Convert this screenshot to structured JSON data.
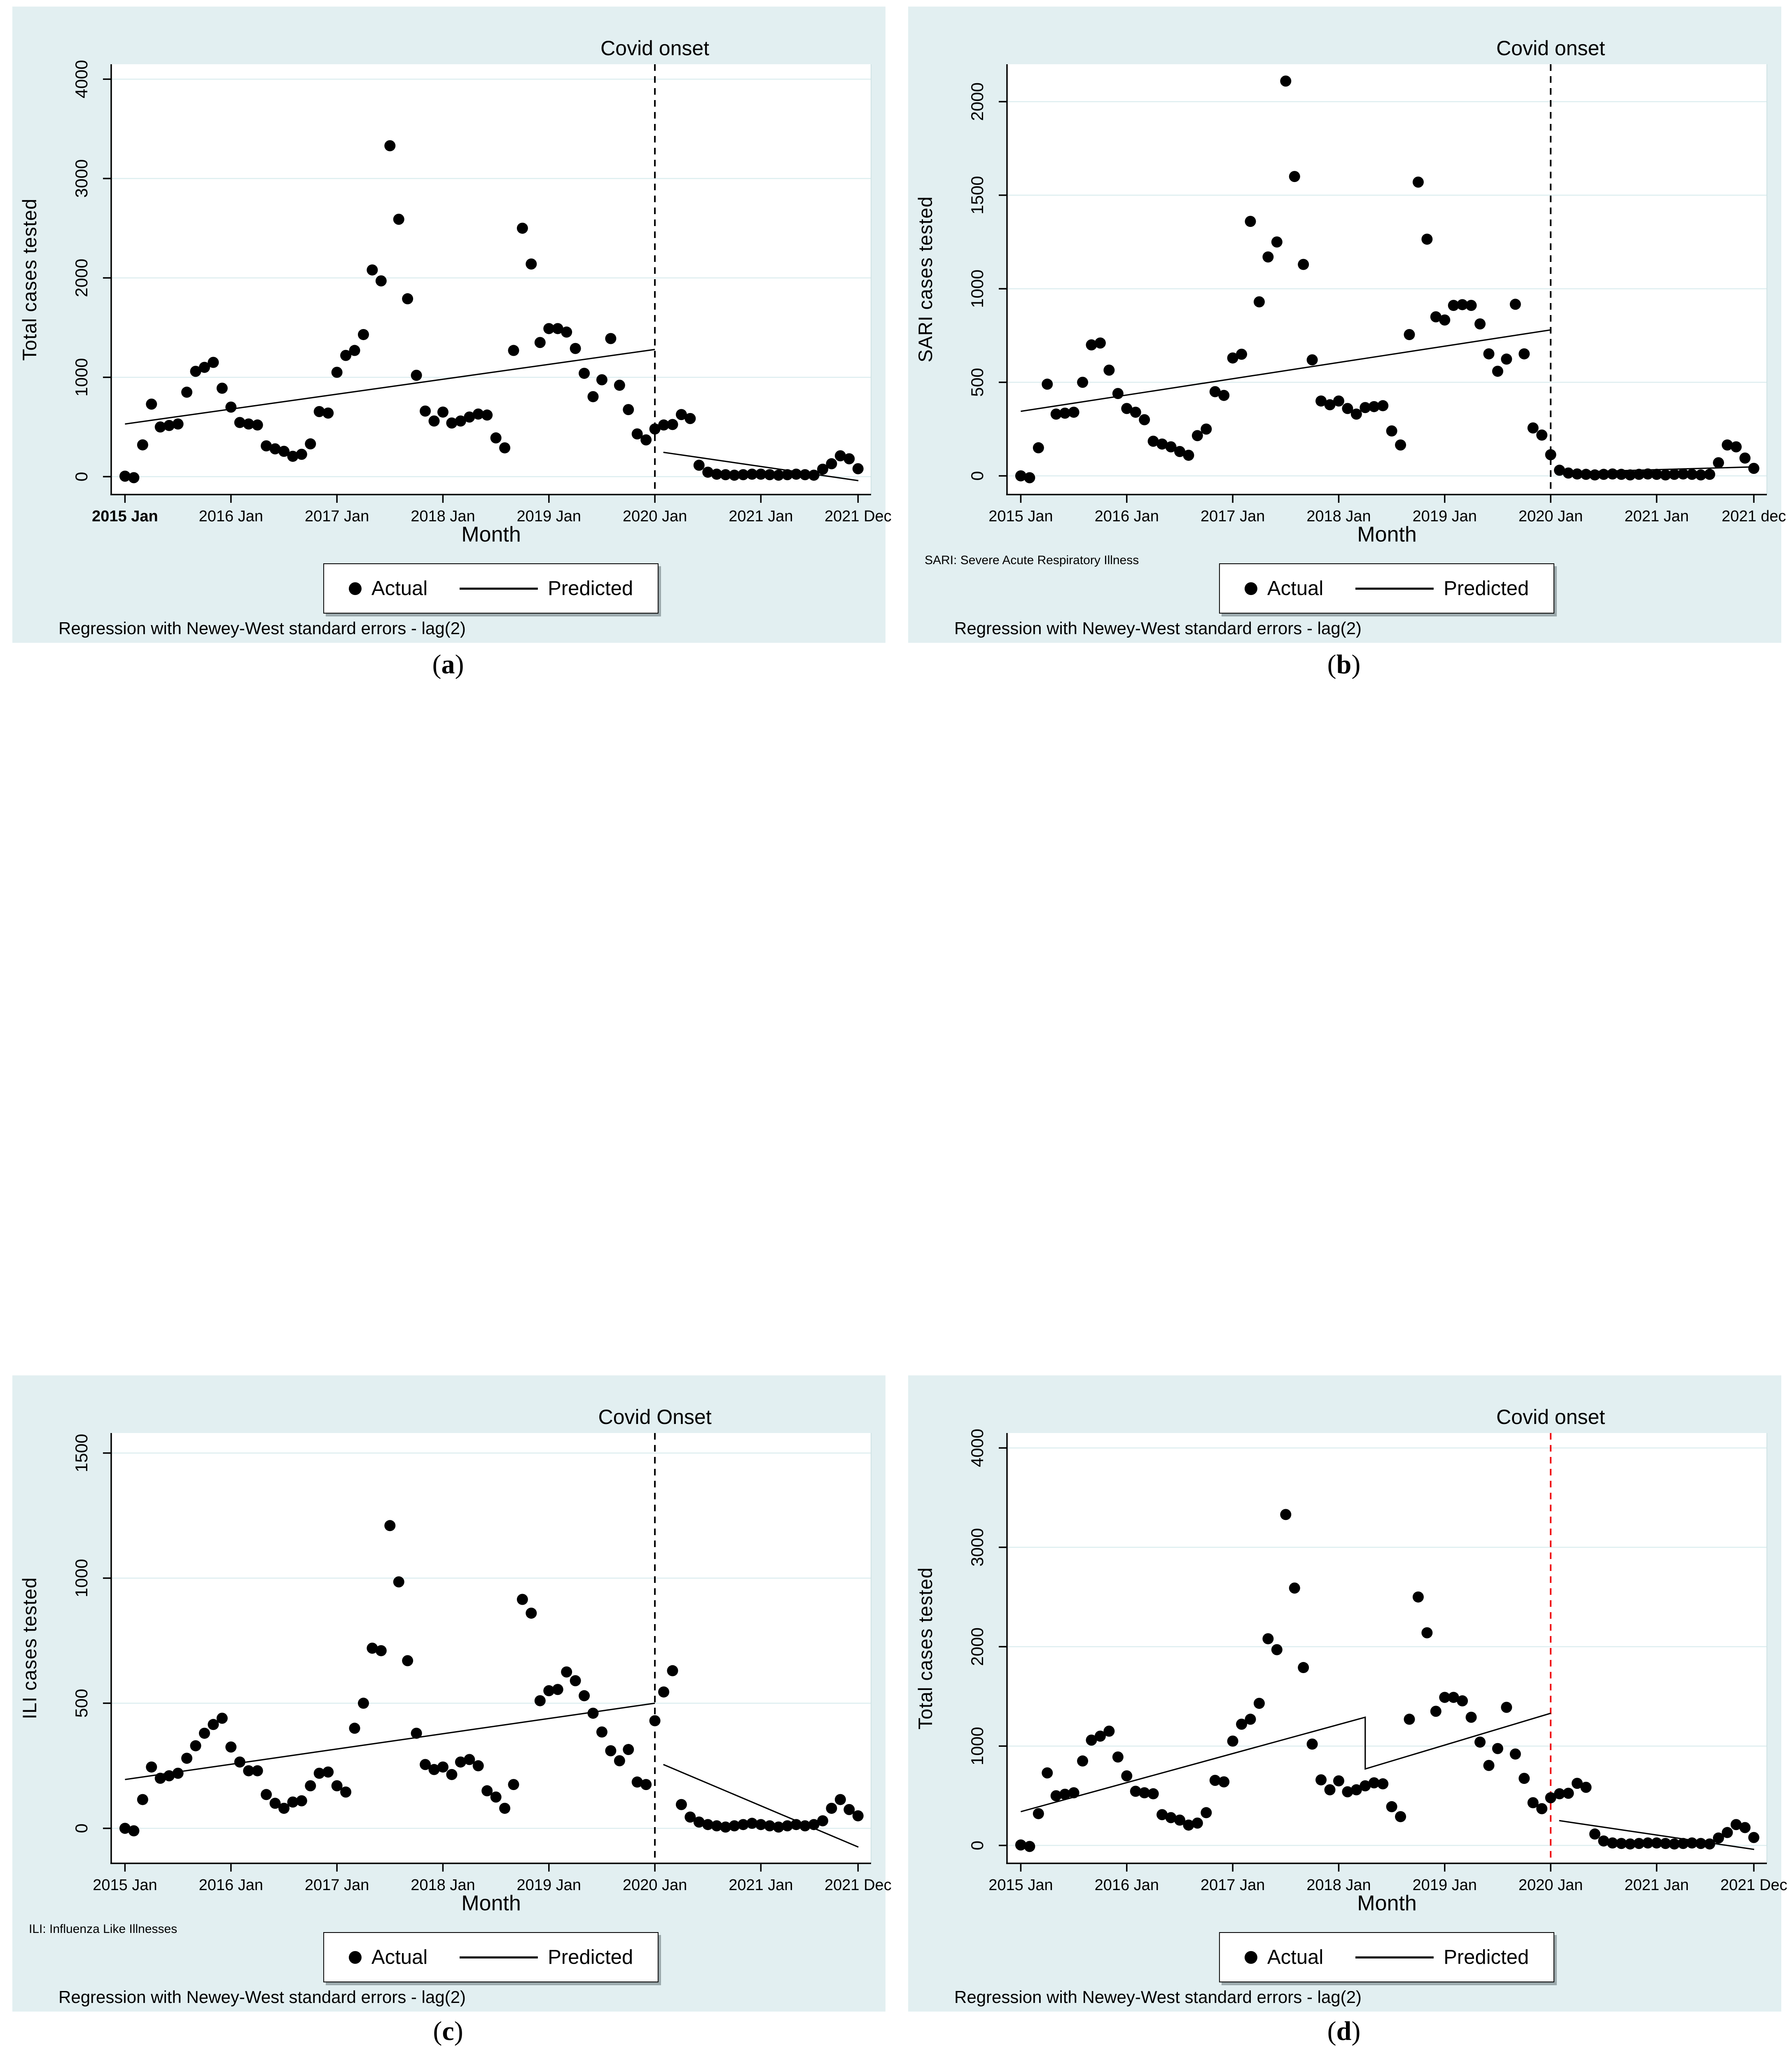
{
  "figure": {
    "background": "#e2eff1",
    "plot_background": "#ffffff",
    "gridline_color": "#dcedef",
    "axis_color": "#000000",
    "point_color": "#000000",
    "panels": [
      {
        "label": {
          "open": "(",
          "letter": "a",
          "close": ")"
        },
        "title": "Covid onset",
        "ylabel": "Total cases tested",
        "xlabel": "Month",
        "note": "",
        "caption": "Regression with Newey-West standard errors - lag(2)",
        "legend": {
          "actual_label": "Actual",
          "predicted_label": "Predicted"
        }
      },
      {
        "label": {
          "open": "(",
          "letter": "b",
          "close": ")"
        },
        "title": "Covid onset",
        "ylabel": "SARI cases tested",
        "xlabel": "Month",
        "note": "SARI: Severe Acute Respiratory Illness",
        "caption": "Regression with Newey-West standard errors - lag(2)",
        "legend": {
          "actual_label": "Actual",
          "predicted_label": "Predicted"
        }
      },
      {
        "label": {
          "open": "(",
          "letter": "c",
          "close": ")"
        },
        "title": "Covid Onset",
        "ylabel": "ILI cases tested",
        "xlabel": "Month",
        "note": "ILI: Influenza Like Illnesses",
        "caption": "Regression with Newey-West standard errors - lag(2)",
        "legend": {
          "actual_label": "Actual",
          "predicted_label": "Predicted"
        }
      },
      {
        "label": {
          "open": "(",
          "letter": "d",
          "close": ")"
        },
        "title": "Covid onset",
        "ylabel": "Total cases tested",
        "xlabel": "Month",
        "note": "",
        "caption": "Regression with Newey-West standard errors - lag(2)",
        "legend": {
          "actual_label": "Actual",
          "predicted_label": "Predicted"
        }
      }
    ]
  },
  "chart_data": [
    {
      "type": "scatter",
      "title": "Covid onset",
      "xlabel": "Month",
      "ylabel": "Total cases tested",
      "legend": [
        "Actual",
        "Predicted"
      ],
      "grid": "horizontal",
      "x_start_year": 2015,
      "xlim": [
        2014.87,
        2022.04
      ],
      "ylim": [
        -180,
        4150
      ],
      "y_ticks": [
        0,
        1000,
        2000,
        3000,
        4000
      ],
      "x_ticks": [
        {
          "x": 2015,
          "label": "2015 Jan",
          "bold": true
        },
        {
          "x": 2016,
          "label": "2016 Jan"
        },
        {
          "x": 2017,
          "label": "2017 Jan"
        },
        {
          "x": 2018,
          "label": "2018 Jan"
        },
        {
          "x": 2019,
          "label": "2019 Jan"
        },
        {
          "x": 2020,
          "label": "2020 Jan"
        },
        {
          "x": 2021,
          "label": "2021 Jan"
        },
        {
          "x": 2021.917,
          "label": "2021 Dec"
        }
      ],
      "covid_vline": {
        "x": 2020.0,
        "color": "#000000"
      },
      "actual_monthly": [
        5,
        -10,
        320,
        730,
        500,
        515,
        530,
        850,
        1060,
        1100,
        1150,
        890,
        700,
        545,
        530,
        520,
        310,
        280,
        255,
        205,
        225,
        330,
        655,
        640,
        1050,
        1220,
        1270,
        1430,
        2080,
        1970,
        3330,
        2590,
        1790,
        1020,
        660,
        560,
        650,
        540,
        560,
        600,
        630,
        620,
        390,
        290,
        1270,
        2500,
        2140,
        1350,
        1490,
        1490,
        1455,
        1290,
        1040,
        805,
        975,
        1390,
        920,
        675,
        430,
        370,
        480,
        520,
        525,
        625,
        585,
        115,
        45,
        25,
        20,
        15,
        20,
        25,
        25,
        20,
        15,
        20,
        25,
        20,
        15,
        75,
        130,
        210,
        180,
        80
      ],
      "predicted_segments": [
        [
          [
            2015.0,
            530
          ],
          [
            2020.0,
            1280
          ]
        ],
        [
          [
            2020.08,
            245
          ],
          [
            2021.92,
            -40
          ]
        ]
      ]
    },
    {
      "type": "scatter",
      "title": "Covid onset",
      "xlabel": "Month",
      "ylabel": "SARI cases tested",
      "legend": [
        "Actual",
        "Predicted"
      ],
      "grid": "horizontal",
      "x_start_year": 2015,
      "xlim": [
        2014.87,
        2022.04
      ],
      "ylim": [
        -100,
        2200
      ],
      "y_ticks": [
        0,
        500,
        1000,
        1500,
        2000
      ],
      "x_ticks": [
        {
          "x": 2015,
          "label": "2015 Jan"
        },
        {
          "x": 2016,
          "label": "2016 Jan"
        },
        {
          "x": 2017,
          "label": "2017 Jan"
        },
        {
          "x": 2018,
          "label": "2018 Jan"
        },
        {
          "x": 2019,
          "label": "2019 Jan"
        },
        {
          "x": 2020,
          "label": "2020 Jan"
        },
        {
          "x": 2021,
          "label": "2021 Jan"
        },
        {
          "x": 2021.917,
          "label": "2021 dec"
        }
      ],
      "covid_vline": {
        "x": 2020.0,
        "color": "#000000"
      },
      "actual_monthly": [
        0,
        -10,
        150,
        490,
        330,
        335,
        340,
        500,
        700,
        710,
        565,
        440,
        360,
        340,
        300,
        185,
        170,
        155,
        130,
        110,
        215,
        250,
        450,
        430,
        630,
        650,
        1360,
        930,
        1170,
        1250,
        2110,
        1600,
        1130,
        620,
        400,
        380,
        400,
        360,
        330,
        365,
        370,
        375,
        240,
        165,
        755,
        1570,
        1265,
        850,
        833,
        911,
        915,
        911,
        812,
        652,
        559,
        624,
        917,
        652,
        256,
        218,
        113,
        30,
        15,
        10,
        8,
        5,
        8,
        10,
        8,
        5,
        8,
        10,
        8,
        5,
        8,
        10,
        8,
        5,
        8,
        70,
        165,
        155,
        95,
        40
      ],
      "predicted_segments": [
        [
          [
            2015.0,
            345
          ],
          [
            2020.0,
            780
          ]
        ],
        [
          [
            2020.08,
            18
          ],
          [
            2021.92,
            48
          ]
        ]
      ]
    },
    {
      "type": "scatter",
      "title": "Covid Onset",
      "xlabel": "Month",
      "ylabel": "ILI cases tested",
      "legend": [
        "Actual",
        "Predicted"
      ],
      "grid": "horizontal",
      "x_start_year": 2015,
      "xlim": [
        2014.87,
        2022.04
      ],
      "ylim": [
        -140,
        1580
      ],
      "y_ticks": [
        0,
        500,
        1000,
        1500
      ],
      "x_ticks": [
        {
          "x": 2015,
          "label": "2015 Jan"
        },
        {
          "x": 2016,
          "label": "2016 Jan"
        },
        {
          "x": 2017,
          "label": "2017 Jan"
        },
        {
          "x": 2018,
          "label": "2018 Jan"
        },
        {
          "x": 2019,
          "label": "2019 Jan"
        },
        {
          "x": 2020,
          "label": "2020 Jan"
        },
        {
          "x": 2021,
          "label": "2021 Jan"
        },
        {
          "x": 2021.917,
          "label": "2021 Dec"
        }
      ],
      "covid_vline": {
        "x": 2020.0,
        "color": "#000000"
      },
      "actual_monthly": [
        0,
        -10,
        115,
        245,
        200,
        210,
        220,
        280,
        330,
        380,
        415,
        440,
        325,
        265,
        230,
        230,
        135,
        100,
        80,
        105,
        110,
        170,
        220,
        225,
        170,
        145,
        400,
        500,
        720,
        710,
        1210,
        985,
        670,
        380,
        255,
        235,
        245,
        215,
        265,
        275,
        250,
        150,
        125,
        80,
        175,
        915,
        860,
        510,
        550,
        555,
        625,
        590,
        530,
        460,
        385,
        310,
        270,
        315,
        185,
        175,
        430,
        545,
        630,
        95,
        45,
        25,
        15,
        10,
        5,
        10,
        15,
        20,
        15,
        10,
        5,
        10,
        15,
        10,
        15,
        30,
        80,
        115,
        75,
        50
      ],
      "predicted_segments": [
        [
          [
            2015.0,
            195
          ],
          [
            2020.0,
            500
          ]
        ],
        [
          [
            2020.08,
            255
          ],
          [
            2021.92,
            -75
          ]
        ]
      ]
    },
    {
      "type": "scatter",
      "title": "Covid onset",
      "xlabel": "Month",
      "ylabel": "Total cases tested",
      "legend": [
        "Actual",
        "Predicted"
      ],
      "grid": "horizontal",
      "x_start_year": 2015,
      "xlim": [
        2014.87,
        2022.04
      ],
      "ylim": [
        -180,
        4150
      ],
      "y_ticks": [
        0,
        1000,
        2000,
        3000,
        4000
      ],
      "x_ticks": [
        {
          "x": 2015,
          "label": "2015 Jan"
        },
        {
          "x": 2016,
          "label": "2016 Jan"
        },
        {
          "x": 2017,
          "label": "2017 Jan"
        },
        {
          "x": 2018,
          "label": "2018 Jan"
        },
        {
          "x": 2019,
          "label": "2019 Jan"
        },
        {
          "x": 2020,
          "label": "2020 Jan"
        },
        {
          "x": 2021,
          "label": "2021 Jan"
        },
        {
          "x": 2021.917,
          "label": "2021 Dec"
        }
      ],
      "covid_vline": {
        "x": 2020.0,
        "color": "#f01418"
      },
      "actual_monthly": [
        5,
        -10,
        320,
        730,
        500,
        515,
        530,
        850,
        1060,
        1100,
        1150,
        890,
        700,
        545,
        530,
        520,
        310,
        280,
        255,
        205,
        225,
        330,
        655,
        640,
        1050,
        1220,
        1270,
        1430,
        2080,
        1970,
        3330,
        2590,
        1790,
        1020,
        660,
        560,
        650,
        540,
        560,
        600,
        630,
        620,
        390,
        290,
        1270,
        2500,
        2140,
        1350,
        1490,
        1490,
        1455,
        1290,
        1040,
        805,
        975,
        1390,
        920,
        675,
        430,
        370,
        480,
        520,
        525,
        625,
        585,
        115,
        45,
        25,
        20,
        15,
        20,
        25,
        25,
        20,
        15,
        20,
        25,
        20,
        15,
        75,
        130,
        210,
        180,
        80
      ],
      "predicted_segments": [
        [
          [
            2015.0,
            340
          ],
          [
            2018.25,
            1290
          ],
          [
            2018.25,
            770
          ],
          [
            2020.0,
            1330
          ]
        ],
        [
          [
            2020.08,
            250
          ],
          [
            2021.92,
            -40
          ]
        ]
      ]
    }
  ]
}
